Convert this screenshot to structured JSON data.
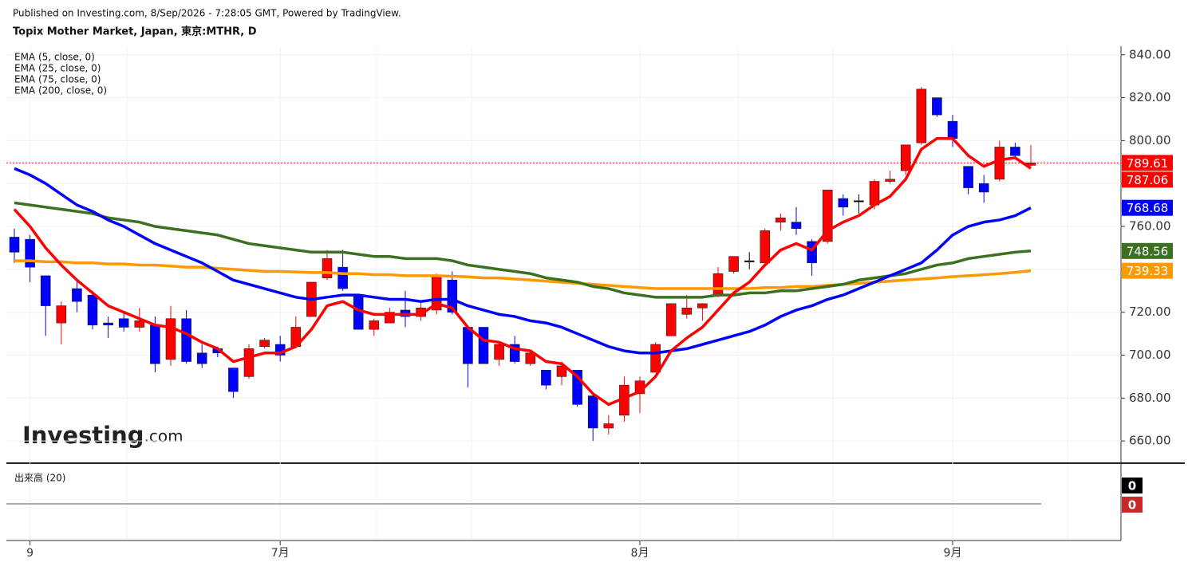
{
  "chart_data": {
    "type": "candlestick",
    "subtitle": "Published on Investing.com, 8/Sep/2026 - 7:28:05 GMT, Powered by TradingView.",
    "title": "Topix Mother Market, Japan, 東京:MTHR, D",
    "watermark": "Investing",
    "watermark_suffix": ".com",
    "categories": [
      null,
      "9",
      null,
      null,
      null,
      null,
      null,
      null,
      null,
      null,
      null,
      null,
      null,
      null,
      null,
      null,
      null,
      "7月",
      null,
      null,
      null,
      null,
      null,
      null,
      null,
      null,
      null,
      null,
      null,
      null,
      null,
      null,
      null,
      null,
      null,
      null,
      null,
      null,
      null,
      null,
      "8月",
      null,
      null,
      null,
      null,
      null,
      null,
      null,
      null,
      null,
      null,
      null,
      null,
      null,
      null,
      null,
      null,
      null,
      null,
      null,
      "9月",
      null,
      null,
      null,
      null,
      null
    ],
    "open": [
      755,
      754,
      737,
      715,
      731,
      728,
      715,
      717,
      713,
      714,
      698,
      717,
      701,
      703,
      694,
      690,
      704,
      705,
      704,
      718,
      736,
      741,
      728,
      712,
      715,
      721,
      718,
      721,
      735,
      713,
      713,
      698,
      705,
      696,
      693,
      690,
      693,
      681,
      666,
      672,
      682,
      692,
      709,
      719,
      722,
      728,
      739,
      744,
      743,
      762,
      762,
      753,
      753,
      773,
      772,
      770,
      781,
      786,
      799,
      820,
      809,
      788,
      780,
      782,
      797,
      788.5
    ],
    "high": [
      759,
      756,
      737,
      725,
      735,
      730,
      718,
      720,
      722,
      718,
      723,
      721,
      705,
      704,
      694,
      705,
      708,
      709,
      718,
      734,
      749,
      749,
      728,
      717,
      722,
      730,
      725,
      738,
      739,
      713,
      713,
      706,
      709,
      702,
      693,
      697,
      693,
      682,
      672,
      690,
      690,
      706,
      724,
      728,
      724,
      741,
      746,
      748,
      759,
      766,
      769,
      754,
      777,
      775,
      775,
      782,
      786,
      798,
      825,
      820,
      812,
      788,
      784,
      800,
      799,
      798
    ],
    "low": [
      743,
      734,
      709,
      705,
      720,
      712,
      708,
      711,
      711,
      692,
      695,
      696,
      694,
      699,
      680,
      689,
      703,
      697,
      704,
      718,
      735,
      730,
      712,
      709,
      715,
      713,
      716,
      719,
      719,
      685,
      696,
      695,
      696,
      695,
      684,
      686,
      676,
      660,
      663,
      669,
      673,
      692,
      709,
      717,
      716,
      727,
      738,
      740,
      743,
      758,
      756,
      737,
      752,
      765,
      766,
      768,
      780,
      784,
      798,
      811,
      797,
      775,
      771,
      781,
      792,
      788
    ],
    "close": [
      748,
      741,
      723,
      723,
      725,
      714,
      714,
      713,
      716,
      696,
      717,
      697,
      696,
      701,
      683,
      703,
      707,
      700,
      713,
      734,
      745,
      731,
      712,
      716,
      720,
      718,
      722,
      737,
      720,
      696,
      696,
      705,
      697,
      701,
      686,
      695,
      677,
      666,
      668,
      686,
      688,
      705,
      724,
      722,
      724,
      738,
      746,
      744,
      758,
      764,
      759,
      743,
      777,
      769,
      772,
      781,
      782,
      798,
      824,
      812,
      801,
      778,
      776,
      797,
      793,
      789.61
    ],
    "up_color": "#ff0000",
    "down_color": "#0000ff",
    "flat_color": "#000000",
    "series": [
      {
        "name": "EMA (5, close, 0)",
        "color": "#ff0000",
        "values": [
          768,
          760,
          750,
          742,
          735,
          729,
          723,
          720,
          717,
          714,
          713,
          710,
          706,
          703,
          697,
          699,
          701,
          701,
          704,
          712,
          723,
          725,
          721,
          719,
          719,
          719,
          719,
          724,
          722,
          713,
          707,
          706,
          703,
          702,
          697,
          696,
          690,
          682,
          677,
          680,
          683,
          690,
          702,
          708,
          713,
          721,
          729,
          734,
          742,
          749,
          752,
          749,
          758,
          762,
          765,
          770,
          774,
          782,
          796,
          801,
          801,
          793,
          788,
          791,
          792,
          787.06
        ]
      },
      {
        "name": "EMA (25, close, 0)",
        "color": "#0000ff",
        "values": [
          787,
          784,
          780,
          775,
          770,
          767,
          763,
          760,
          756,
          752,
          749,
          746,
          743,
          739,
          735,
          733,
          731,
          729,
          727,
          726,
          727,
          728,
          728,
          727,
          726,
          726,
          725,
          726,
          726,
          723,
          721,
          719,
          718,
          716,
          715,
          713,
          710,
          707,
          704,
          702,
          701,
          701,
          702,
          703,
          705,
          707,
          709,
          711,
          714,
          718,
          721,
          723,
          726,
          728,
          731,
          734,
          737,
          740,
          743,
          749,
          756,
          760,
          762,
          763,
          765,
          768.68
        ]
      },
      {
        "name": "EMA (75, close, 0)",
        "color": "#3b7020",
        "values": [
          771,
          770,
          769,
          768,
          767,
          766,
          764,
          763,
          762,
          760,
          759,
          758,
          757,
          756,
          754,
          752,
          751,
          750,
          749,
          748,
          748,
          748,
          747,
          746,
          746,
          745,
          745,
          745,
          744,
          742,
          741,
          740,
          739,
          738,
          736,
          735,
          734,
          732,
          731,
          729,
          728,
          727,
          727,
          727,
          727,
          728,
          728,
          729,
          729,
          730,
          730,
          731,
          732,
          733,
          735,
          736,
          737,
          738,
          740,
          742,
          743,
          745,
          746,
          747,
          748,
          748.56
        ]
      },
      {
        "name": "EMA (200, close, 0)",
        "color": "#ff9900",
        "values": [
          744,
          744,
          743.5,
          743.5,
          743,
          743,
          742.5,
          742.5,
          742,
          742,
          741.5,
          741,
          741,
          740.5,
          740,
          739.5,
          739,
          739,
          738.8,
          738.5,
          738.5,
          738,
          738,
          737.5,
          737.5,
          737,
          737,
          737,
          736.8,
          736.5,
          736,
          736,
          735.5,
          735,
          734.5,
          734,
          733.5,
          733,
          732.5,
          732,
          731.5,
          731,
          731,
          731,
          731,
          731,
          731,
          731,
          731.5,
          731.5,
          732,
          732,
          732.5,
          733,
          733.5,
          734,
          734.5,
          735,
          735.5,
          736,
          736.6,
          737,
          737.5,
          738,
          738.6,
          739.33
        ]
      }
    ],
    "ylim": [
      650,
      844
    ],
    "yticks": [
      {
        "value": 660,
        "label": "660.00"
      },
      {
        "value": 680,
        "label": "680.00"
      },
      {
        "value": 700,
        "label": "700.00"
      },
      {
        "value": 720,
        "label": "720.00"
      },
      {
        "value": 740,
        "label": "740.00"
      },
      {
        "value": 760,
        "label": "760.00"
      },
      {
        "value": 780,
        "label": "780.00"
      },
      {
        "value": 800,
        "label": "800.00"
      },
      {
        "value": 820,
        "label": "820.00"
      },
      {
        "value": 840,
        "label": "840.00"
      }
    ],
    "grid": true,
    "volume": {
      "title": "出来高 (20)",
      "last": 0,
      "ma_last": 0,
      "color": "#000000",
      "ma_color": "#c62828"
    }
  }
}
